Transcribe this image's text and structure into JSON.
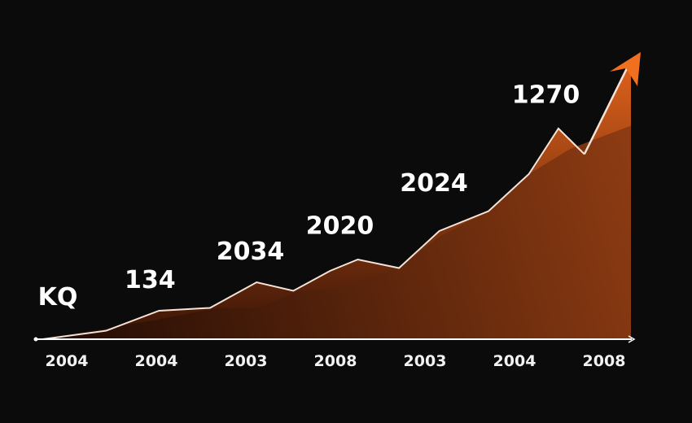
{
  "chart_data": {
    "type": "area",
    "title": "",
    "xlabel": "",
    "ylabel": "",
    "tick_labels": [
      "2004",
      "2004",
      "2003",
      "2008",
      "2003",
      "2004",
      "2008"
    ],
    "ylim": [
      0,
      100
    ],
    "grid": false,
    "series": [
      {
        "x": [
          -0.27,
          0.44,
          1.03,
          1.6,
          2.12,
          2.53,
          2.94,
          3.25,
          3.71,
          4.16,
          4.71,
          5.16,
          5.49,
          5.78,
          6.3
        ],
        "y": [
          0,
          3,
          10,
          11,
          20,
          17,
          24,
          28,
          25,
          38,
          45,
          58,
          74,
          65,
          98
        ]
      },
      {
        "x": [
          -0.27,
          1.03,
          1.7,
          2.15,
          2.58,
          3.05,
          3.71,
          4.16,
          4.71,
          5.16,
          5.63,
          6.3
        ],
        "y": [
          0,
          7,
          11,
          11,
          17,
          18,
          25,
          36,
          45,
          58,
          67,
          75
        ]
      }
    ],
    "annotations": [
      {
        "text": "KQ",
        "x": -0.1,
        "y": 12
      },
      {
        "text": "134",
        "x": 0.93,
        "y": 18
      },
      {
        "text": "2034",
        "x": 2.05,
        "y": 28
      },
      {
        "text": "2020",
        "x": 3.05,
        "y": 37
      },
      {
        "text": "2024",
        "x": 4.1,
        "y": 52
      },
      {
        "text": "1270",
        "x": 5.35,
        "y": 83
      }
    ],
    "colors": {
      "line": "#f4e3d6",
      "area_top": "#e0621c",
      "area_bottom": "#2a0f05",
      "inner_area": "#6a2a0c",
      "arrow": "#f07020",
      "axis": "#ffffff",
      "background": "#0b0b0b"
    }
  }
}
